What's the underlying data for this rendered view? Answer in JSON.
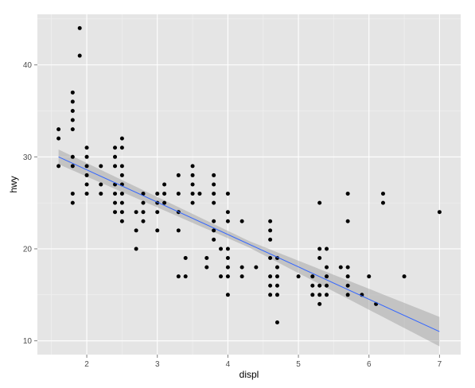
{
  "chart_data": {
    "type": "scatter",
    "xlabel": "displ",
    "ylabel": "hwy",
    "xlim": [
      1.3,
      7.3
    ],
    "ylim": [
      8.5,
      45.5
    ],
    "x_ticks": [
      2,
      3,
      4,
      5,
      6,
      7
    ],
    "y_ticks": [
      10,
      20,
      30,
      40
    ],
    "x_tick_labels": [
      "2",
      "3",
      "4",
      "5",
      "6",
      "7"
    ],
    "y_tick_labels": [
      "10",
      "20",
      "30",
      "40"
    ],
    "grid": true,
    "legend": "none",
    "colors": {
      "panel_background": "#e5e5e5",
      "grid_major": "#ffffff",
      "grid_minor": "#f2f2f2",
      "points": "#000000",
      "fit_line": "#3366ff",
      "confidence_band": "#999999"
    },
    "fit": {
      "method": "linear",
      "x_range": [
        1.6,
        7.0
      ],
      "y_at_start": 30.0,
      "y_at_end": 11.0,
      "band_halfwidth_at_start": 0.8,
      "band_halfwidth_at_center": 0.35,
      "band_halfwidth_at_end": 1.6
    },
    "points": [
      [
        1.6,
        33
      ],
      [
        1.6,
        32
      ],
      [
        1.6,
        29
      ],
      [
        1.8,
        37
      ],
      [
        1.8,
        36
      ],
      [
        1.8,
        35
      ],
      [
        1.8,
        34
      ],
      [
        1.8,
        33
      ],
      [
        1.8,
        30
      ],
      [
        1.8,
        29
      ],
      [
        1.8,
        26
      ],
      [
        1.8,
        25
      ],
      [
        1.9,
        44
      ],
      [
        1.9,
        41
      ],
      [
        2.0,
        31
      ],
      [
        2.0,
        30
      ],
      [
        2.0,
        29
      ],
      [
        2.0,
        28
      ],
      [
        2.0,
        27
      ],
      [
        2.0,
        26
      ],
      [
        2.2,
        29
      ],
      [
        2.2,
        27
      ],
      [
        2.2,
        26
      ],
      [
        2.4,
        31
      ],
      [
        2.4,
        30
      ],
      [
        2.4,
        29
      ],
      [
        2.4,
        27
      ],
      [
        2.4,
        26
      ],
      [
        2.4,
        25
      ],
      [
        2.4,
        24
      ],
      [
        2.5,
        32
      ],
      [
        2.5,
        31
      ],
      [
        2.5,
        29
      ],
      [
        2.5,
        28
      ],
      [
        2.5,
        27
      ],
      [
        2.5,
        26
      ],
      [
        2.5,
        25
      ],
      [
        2.5,
        24
      ],
      [
        2.5,
        23
      ],
      [
        2.7,
        24
      ],
      [
        2.7,
        22
      ],
      [
        2.7,
        20
      ],
      [
        2.8,
        26
      ],
      [
        2.8,
        25
      ],
      [
        2.8,
        24
      ],
      [
        2.8,
        23
      ],
      [
        3.0,
        26
      ],
      [
        3.0,
        25
      ],
      [
        3.0,
        24
      ],
      [
        3.0,
        22
      ],
      [
        3.1,
        27
      ],
      [
        3.1,
        26
      ],
      [
        3.1,
        25
      ],
      [
        3.3,
        28
      ],
      [
        3.3,
        26
      ],
      [
        3.3,
        24
      ],
      [
        3.3,
        22
      ],
      [
        3.3,
        17
      ],
      [
        3.4,
        19
      ],
      [
        3.4,
        17
      ],
      [
        3.5,
        29
      ],
      [
        3.5,
        28
      ],
      [
        3.5,
        27
      ],
      [
        3.5,
        26
      ],
      [
        3.5,
        25
      ],
      [
        3.6,
        26
      ],
      [
        3.7,
        19
      ],
      [
        3.7,
        18
      ],
      [
        3.8,
        28
      ],
      [
        3.8,
        27
      ],
      [
        3.8,
        26
      ],
      [
        3.8,
        25
      ],
      [
        3.8,
        23
      ],
      [
        3.8,
        22
      ],
      [
        3.8,
        21
      ],
      [
        3.9,
        20
      ],
      [
        3.9,
        17
      ],
      [
        4.0,
        26
      ],
      [
        4.0,
        24
      ],
      [
        4.0,
        23
      ],
      [
        4.0,
        20
      ],
      [
        4.0,
        19
      ],
      [
        4.0,
        18
      ],
      [
        4.0,
        17
      ],
      [
        4.0,
        15
      ],
      [
        4.2,
        23
      ],
      [
        4.2,
        18
      ],
      [
        4.2,
        17
      ],
      [
        4.4,
        18
      ],
      [
        4.6,
        23
      ],
      [
        4.6,
        22
      ],
      [
        4.6,
        21
      ],
      [
        4.6,
        19
      ],
      [
        4.6,
        17
      ],
      [
        4.6,
        16
      ],
      [
        4.6,
        15
      ],
      [
        4.7,
        19
      ],
      [
        4.7,
        18
      ],
      [
        4.7,
        17
      ],
      [
        4.7,
        16
      ],
      [
        4.7,
        15
      ],
      [
        4.7,
        12
      ],
      [
        5.0,
        17
      ],
      [
        5.2,
        17
      ],
      [
        5.2,
        16
      ],
      [
        5.2,
        15
      ],
      [
        5.3,
        25
      ],
      [
        5.3,
        20
      ],
      [
        5.3,
        19
      ],
      [
        5.3,
        16
      ],
      [
        5.3,
        15
      ],
      [
        5.3,
        14
      ],
      [
        5.4,
        20
      ],
      [
        5.4,
        18
      ],
      [
        5.4,
        17
      ],
      [
        5.4,
        16
      ],
      [
        5.4,
        15
      ],
      [
        5.6,
        18
      ],
      [
        5.7,
        26
      ],
      [
        5.7,
        23
      ],
      [
        5.7,
        18
      ],
      [
        5.7,
        17
      ],
      [
        5.7,
        16
      ],
      [
        5.7,
        15
      ],
      [
        5.9,
        15
      ],
      [
        6.0,
        17
      ],
      [
        6.1,
        14
      ],
      [
        6.2,
        26
      ],
      [
        6.2,
        25
      ],
      [
        6.5,
        17
      ],
      [
        7.0,
        24
      ]
    ]
  }
}
